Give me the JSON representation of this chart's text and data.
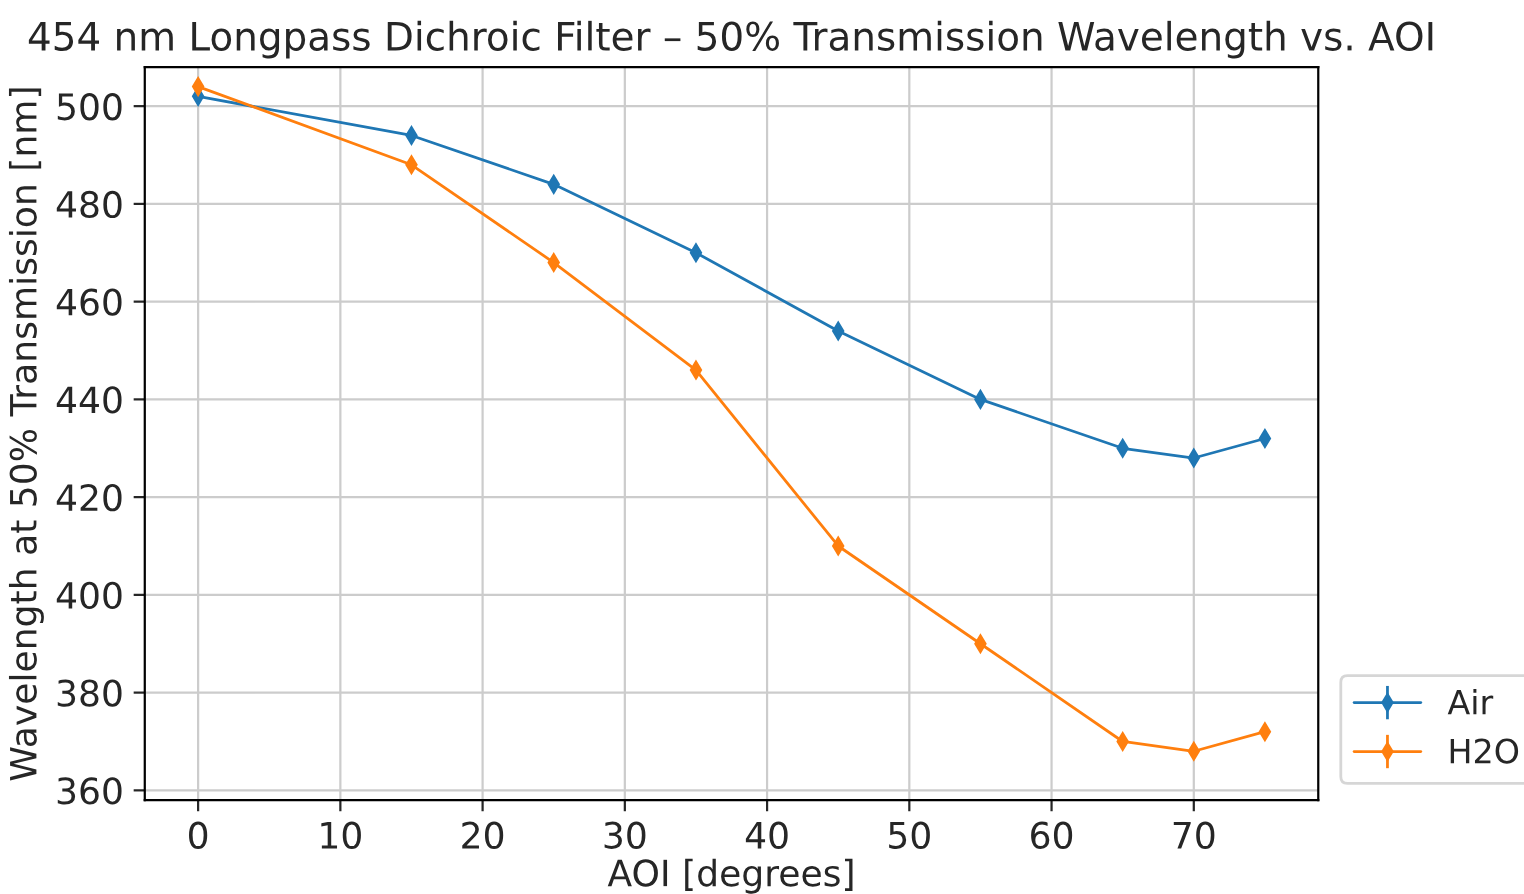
{
  "chart_data": {
    "type": "line",
    "title": "454 nm Longpass Dichroic Filter – 50% Transmission Wavelength vs. AOI",
    "xlabel": "AOI [degrees]",
    "ylabel": "Wavelength at 50% Transmission [nm]",
    "x": [
      0,
      15,
      25,
      35,
      45,
      55,
      65,
      70,
      75
    ],
    "series": [
      {
        "name": "Air",
        "color": "#1f77b4",
        "values": [
          502,
          494,
          484,
          470,
          454,
          440,
          430,
          428,
          432
        ],
        "errors": [
          1.5,
          1.5,
          1.5,
          1.5,
          1.5,
          1.5,
          1.5,
          1.5,
          1.5
        ]
      },
      {
        "name": "H2O",
        "color": "#ff7f0e",
        "values": [
          504,
          488,
          468,
          446,
          410,
          390,
          370,
          368,
          372
        ],
        "errors": [
          1.5,
          1.5,
          1.5,
          1.5,
          1.5,
          1.5,
          1.5,
          1.5,
          1.5
        ]
      }
    ],
    "xlim": [
      -3.75,
      78.75
    ],
    "xticks": [
      0,
      10,
      20,
      30,
      40,
      50,
      60,
      70
    ],
    "ylim": [
      358,
      508
    ],
    "yticks": [
      360,
      380,
      400,
      420,
      440,
      460,
      480,
      500
    ],
    "grid": true,
    "legend": "bottom right",
    "marker": "diamond",
    "line_style": "solid"
  }
}
